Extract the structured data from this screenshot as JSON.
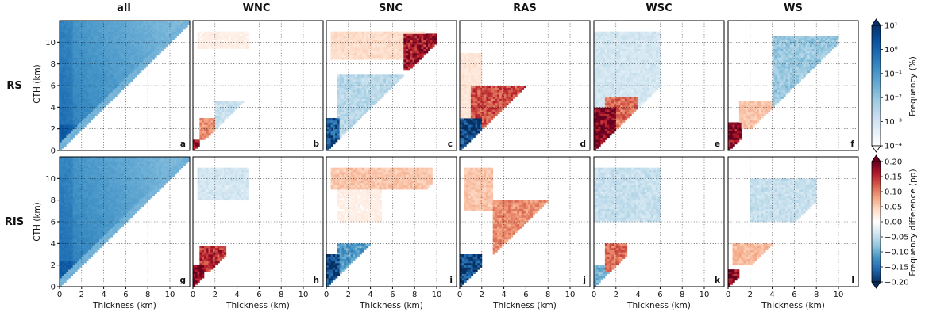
{
  "chart_data": {
    "type": "heatmap",
    "columns": [
      "all",
      "WNC",
      "SNC",
      "RAS",
      "WSC",
      "WS"
    ],
    "rows": [
      "RS",
      "RIS"
    ],
    "panel_labels": [
      [
        "a",
        "b",
        "c",
        "d",
        "e",
        "f"
      ],
      [
        "g",
        "h",
        "i",
        "j",
        "k",
        "l"
      ]
    ],
    "xlabel": "Thickness (km)",
    "ylabel": "CTH (km)",
    "xlim": [
      0,
      11.8
    ],
    "ylim": [
      0,
      12
    ],
    "x_ticks": [
      0,
      2,
      4,
      6,
      8,
      10
    ],
    "y_ticks": [
      0,
      2,
      4,
      6,
      8,
      10
    ],
    "grid": true,
    "frequency_colorbar": {
      "label": "Frequency (%)",
      "scale": "log",
      "ticks": [
        "10¹",
        "10⁰",
        "10⁻¹",
        "10⁻²",
        "10⁻³",
        "10⁻⁴"
      ],
      "range": [
        0.0001,
        10
      ],
      "colors": [
        "#ffffff",
        "#e3eef8",
        "#c6dbef",
        "#9ecae1",
        "#6baed6",
        "#4292c6",
        "#2171b5",
        "#08519c",
        "#08306b"
      ]
    },
    "difference_colorbar": {
      "label": "Frequency difference (pp)",
      "ticks": [
        "0.20",
        "0.15",
        "0.10",
        "0.05",
        "0.00",
        "−0.05",
        "−0.10",
        "−0.15",
        "−0.20"
      ],
      "range": [
        -0.2,
        0.2
      ],
      "colors": [
        "#053061",
        "#2166ac",
        "#4393c3",
        "#92c5de",
        "#d1e5f0",
        "#ffffff",
        "#fddbc7",
        "#f4a582",
        "#d6604d",
        "#b2182b",
        "#67001f"
      ]
    },
    "panels": [
      {
        "id": "a",
        "row": "RS",
        "column": "all",
        "kind": "frequency",
        "features": []
      },
      {
        "id": "b",
        "row": "RS",
        "column": "WNC",
        "kind": "difference",
        "features": [
          {
            "x": [
              0,
              0.6
            ],
            "y": [
              0,
              1
            ],
            "value": 0.2
          },
          {
            "x": [
              0.6,
              2
            ],
            "y": [
              1,
              3
            ],
            "value": 0.1
          },
          {
            "x": [
              2,
              4.5
            ],
            "y": [
              2,
              4.5
            ],
            "value": -0.05
          },
          {
            "x": [
              0.5,
              5
            ],
            "y": [
              9.5,
              11
            ],
            "value": 0.02
          }
        ]
      },
      {
        "id": "c",
        "row": "RS",
        "column": "SNC",
        "kind": "difference",
        "features": [
          {
            "x": [
              0,
              1.2
            ],
            "y": [
              0,
              3
            ],
            "value": -0.18
          },
          {
            "x": [
              0.5,
              9
            ],
            "y": [
              8.5,
              11
            ],
            "value": 0.04
          },
          {
            "x": [
              7,
              10
            ],
            "y": [
              7.5,
              10.8
            ],
            "value": 0.18
          },
          {
            "x": [
              1,
              7
            ],
            "y": [
              1,
              7
            ],
            "value": -0.06
          }
        ]
      },
      {
        "id": "d",
        "row": "RS",
        "column": "RAS",
        "kind": "difference",
        "features": [
          {
            "x": [
              0,
              2
            ],
            "y": [
              0,
              3
            ],
            "value": -0.2
          },
          {
            "x": [
              1,
              6
            ],
            "y": [
              1,
              6
            ],
            "value": 0.14
          },
          {
            "x": [
              0,
              2
            ],
            "y": [
              3,
              9
            ],
            "value": 0.03
          }
        ]
      },
      {
        "id": "e",
        "row": "RS",
        "column": "WSC",
        "kind": "difference",
        "features": [
          {
            "x": [
              0,
              2
            ],
            "y": [
              0,
              4
            ],
            "value": 0.2
          },
          {
            "x": [
              1,
              4
            ],
            "y": [
              2,
              5
            ],
            "value": 0.12
          },
          {
            "x": [
              0,
              6
            ],
            "y": [
              4,
              11
            ],
            "value": -0.04
          }
        ]
      },
      {
        "id": "f",
        "row": "RS",
        "column": "WS",
        "kind": "difference",
        "features": [
          {
            "x": [
              0,
              1.2
            ],
            "y": [
              0,
              2.5
            ],
            "value": 0.2
          },
          {
            "x": [
              1,
              4
            ],
            "y": [
              2,
              4.5
            ],
            "value": 0.06
          },
          {
            "x": [
              4,
              10
            ],
            "y": [
              4,
              10.5
            ],
            "value": -0.08
          }
        ]
      },
      {
        "id": "g",
        "row": "RIS",
        "column": "all",
        "kind": "frequency",
        "features": []
      },
      {
        "id": "h",
        "row": "RIS",
        "column": "WNC",
        "kind": "difference",
        "features": [
          {
            "x": [
              0,
              1
            ],
            "y": [
              0,
              2
            ],
            "value": 0.2
          },
          {
            "x": [
              0.6,
              3
            ],
            "y": [
              1.5,
              3.8
            ],
            "value": 0.16
          },
          {
            "x": [
              0.5,
              5
            ],
            "y": [
              8,
              11
            ],
            "value": -0.04
          }
        ]
      },
      {
        "id": "i",
        "row": "RIS",
        "column": "SNC",
        "kind": "difference",
        "features": [
          {
            "x": [
              0,
              1.2
            ],
            "y": [
              0,
              3
            ],
            "value": -0.2
          },
          {
            "x": [
              1,
              4
            ],
            "y": [
              1,
              4
            ],
            "value": -0.12
          },
          {
            "x": [
              0.5,
              9.5
            ],
            "y": [
              9,
              11
            ],
            "value": 0.06
          },
          {
            "x": [
              1,
              5
            ],
            "y": [
              6,
              9
            ],
            "value": 0.02
          }
        ]
      },
      {
        "id": "j",
        "row": "RIS",
        "column": "RAS",
        "kind": "difference",
        "features": [
          {
            "x": [
              0,
              2
            ],
            "y": [
              0,
              3
            ],
            "value": -0.2
          },
          {
            "x": [
              0.5,
              3
            ],
            "y": [
              7,
              11
            ],
            "value": 0.06
          },
          {
            "x": [
              3,
              8
            ],
            "y": [
              3,
              8
            ],
            "value": 0.1
          }
        ]
      },
      {
        "id": "k",
        "row": "RIS",
        "column": "WSC",
        "kind": "difference",
        "features": [
          {
            "x": [
              0,
              1.5
            ],
            "y": [
              0,
              2
            ],
            "value": -0.1
          },
          {
            "x": [
              1,
              3
            ],
            "y": [
              1.5,
              4
            ],
            "value": 0.12
          },
          {
            "x": [
              0,
              6
            ],
            "y": [
              6,
              11
            ],
            "value": -0.05
          }
        ]
      },
      {
        "id": "l",
        "row": "RIS",
        "column": "WS",
        "kind": "difference",
        "features": [
          {
            "x": [
              0,
              1
            ],
            "y": [
              0,
              1.5
            ],
            "value": 0.2
          },
          {
            "x": [
              0.5,
              4
            ],
            "y": [
              2,
              4
            ],
            "value": 0.07
          },
          {
            "x": [
              2,
              8
            ],
            "y": [
              6,
              10
            ],
            "value": -0.05
          }
        ]
      }
    ]
  }
}
